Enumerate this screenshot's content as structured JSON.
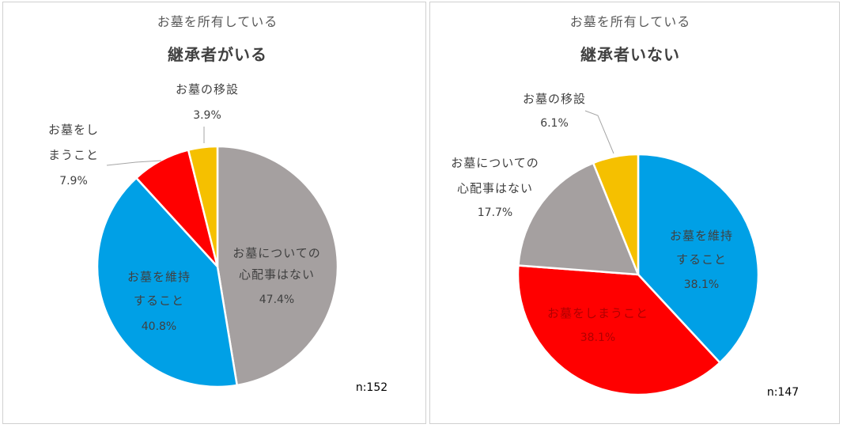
{
  "chart_data": [
    {
      "type": "pie",
      "subtitle": "お墓を所有している",
      "title": "継承者がいる",
      "n_label": "n:152",
      "slices": [
        {
          "label": "お墓についての心配事はない",
          "label_lines": [
            "お墓についての",
            "心配事はない"
          ],
          "value": 47.4,
          "value_label": "47.4%",
          "color": "#a5a0a0"
        },
        {
          "label": "お墓を維持すること",
          "label_lines": [
            "お墓を維持",
            "すること"
          ],
          "value": 40.8,
          "value_label": "40.8%",
          "color": "#00a0e6"
        },
        {
          "label": "お墓をしまうこと",
          "label_lines": [
            "お墓をし",
            "まうこと"
          ],
          "value": 7.9,
          "value_label": "7.9%",
          "color": "#ff0000"
        },
        {
          "label": "お墓の移設",
          "label_lines": [
            "お墓の移設"
          ],
          "value": 3.9,
          "value_label": "3.9%",
          "color": "#f5c000"
        }
      ]
    },
    {
      "type": "pie",
      "subtitle": "お墓を所有している",
      "title": "継承者いない",
      "n_label": "n:147",
      "slices": [
        {
          "label": "お墓を維持すること",
          "label_lines": [
            "お墓を維持",
            "すること"
          ],
          "value": 38.1,
          "value_label": "38.1%",
          "color": "#00a0e6"
        },
        {
          "label": "お墓をしまうこと",
          "label_lines": [
            "お墓をしまうこと"
          ],
          "value": 38.1,
          "value_label": "38.1%",
          "color": "#ff0000"
        },
        {
          "label": "お墓についての心配事はない",
          "label_lines": [
            "お墓についての",
            "心配事はない"
          ],
          "value": 17.7,
          "value_label": "17.7%",
          "color": "#a5a0a0"
        },
        {
          "label": "お墓の移設",
          "label_lines": [
            "お墓の移設"
          ],
          "value": 6.1,
          "value_label": "6.1%",
          "color": "#f5c000"
        }
      ]
    }
  ]
}
